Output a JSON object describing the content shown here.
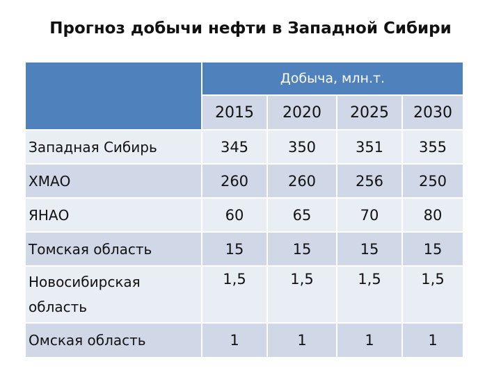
{
  "title": "Прогноз добычи нефти в Западной Сибири",
  "table": {
    "group_header": "Добыча, млн.т.",
    "years": [
      "2015",
      "2020",
      "2025",
      "2030"
    ],
    "rows": [
      {
        "label": "Западная Сибирь",
        "values": [
          "345",
          "350",
          "351",
          "355"
        ]
      },
      {
        "label": "ХМАО",
        "values": [
          "260",
          "260",
          "256",
          "250"
        ]
      },
      {
        "label": "ЯНАО",
        "values": [
          "60",
          "65",
          "70",
          "80"
        ]
      },
      {
        "label": "Томская область",
        "values": [
          "15",
          "15",
          "15",
          "15"
        ]
      },
      {
        "label": "Новосибирская область",
        "values": [
          "1,5",
          "1,5",
          "1,5",
          "1,5"
        ]
      },
      {
        "label": "Омская область",
        "values": [
          "1",
          "1",
          "1",
          "1"
        ]
      }
    ]
  },
  "colors": {
    "header_blue": "#4f81bd",
    "band_dark": "#d0d8e8",
    "band_light": "#e9edf4"
  }
}
